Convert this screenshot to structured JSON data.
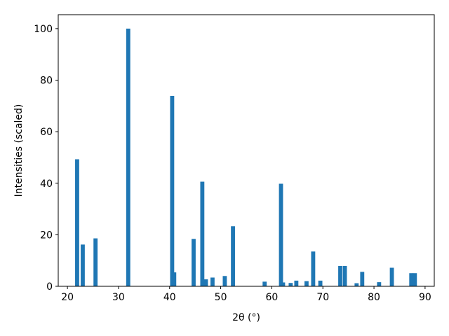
{
  "chart_data": {
    "type": "bar",
    "x_label": "2θ (°)",
    "y_label": "Intensities (scaled)",
    "x": [
      21.9,
      23.0,
      25.5,
      31.9,
      40.5,
      40.9,
      44.7,
      46.4,
      47.1,
      48.4,
      50.8,
      52.4,
      58.6,
      61.8,
      62.2,
      63.7,
      64.8,
      66.8,
      68.1,
      69.5,
      73.4,
      74.3,
      76.6,
      77.7,
      81.0,
      83.5,
      87.3,
      88.0
    ],
    "values": [
      49.3,
      16.2,
      18.6,
      100,
      73.9,
      5.4,
      18.4,
      40.6,
      2.7,
      3.4,
      4.0,
      23.3,
      1.8,
      39.8,
      1.5,
      1.3,
      2.2,
      2.0,
      13.5,
      2.2,
      7.9,
      7.9,
      1.2,
      5.6,
      1.6,
      7.2,
      5.1,
      5.1
    ],
    "color": "#1f77b4",
    "xlim": [
      18.2,
      91.8
    ],
    "ylim": [
      0,
      105.4
    ],
    "xticks": [
      20,
      30,
      40,
      50,
      60,
      70,
      80,
      90
    ],
    "yticks": [
      0,
      20,
      40,
      60,
      80,
      100
    ]
  }
}
